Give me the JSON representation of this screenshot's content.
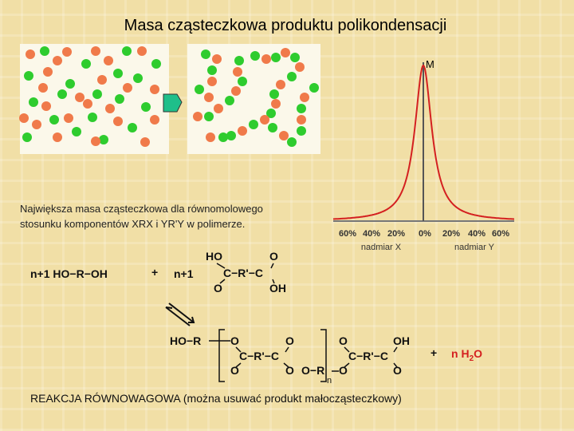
{
  "title": "Masa cząsteczkowa produktu polikondensacji",
  "description": [
    "Największa masa cząsteczkowa dla równomolowego",
    "stosunku komponentów XRX i YR'Y w polimerze."
  ],
  "graph": {
    "peak_label": "M",
    "ticks": [
      "60%",
      "40%",
      "20%",
      "0%",
      "20%",
      "40%",
      "60%"
    ],
    "x_side_label": "nadmiar X",
    "y_side_label": "nadmiar Y"
  },
  "reaction": {
    "reactant1": "n+1 HO−R−OH",
    "plus": "+",
    "coefficient": "n+1",
    "acid": [
      "HO",
      "O",
      "C−R'−C",
      "O",
      "OH"
    ],
    "product": [
      "HO−R",
      "O",
      "O",
      "C−R'−C",
      "O",
      "O",
      "O−R",
      "O",
      "OH",
      "C−R'−C",
      "O",
      "O",
      "n"
    ],
    "plus2": "+",
    "water": [
      "n H",
      "2",
      "O"
    ]
  },
  "footer": "REAKCJA RÓWNOWAGOWA (można usuwać produkt małocząsteczkowy)"
}
